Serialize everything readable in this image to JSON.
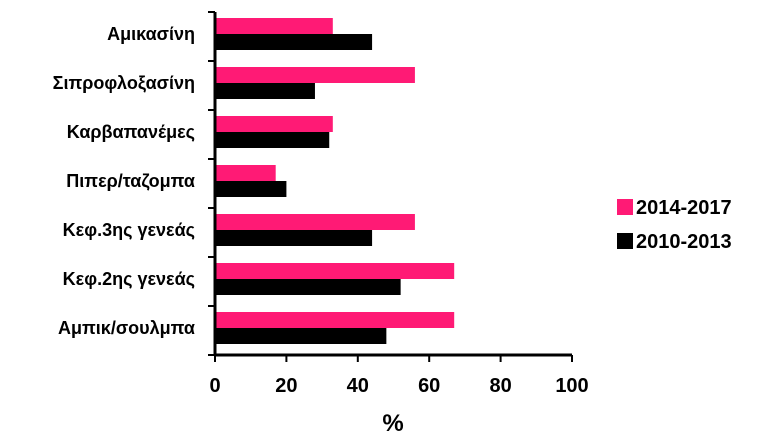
{
  "chart_data": {
    "type": "bar",
    "orientation": "horizontal",
    "categories": [
      "Αμικασίνη",
      "Σιπροφλοξασίνη",
      "Καρβαπανέμες",
      "Πιπερ/ταζομπα",
      "Κεφ.3ης γενεάς",
      "Κεφ.2ης γενεάς",
      "Αμπικ/σουλμπα"
    ],
    "series": [
      {
        "name": "2014-2017",
        "color": "#FF1A75",
        "values": [
          33,
          56,
          33,
          17,
          56,
          67,
          67
        ]
      },
      {
        "name": "2010-2013",
        "color": "#000000",
        "values": [
          44,
          28,
          32,
          20,
          44,
          52,
          48
        ]
      }
    ],
    "xlabel": "%",
    "xlim": [
      0,
      100
    ],
    "xticks": [
      "0",
      "20",
      "40",
      "60",
      "80",
      "100"
    ],
    "grid": false,
    "legend": "right"
  }
}
